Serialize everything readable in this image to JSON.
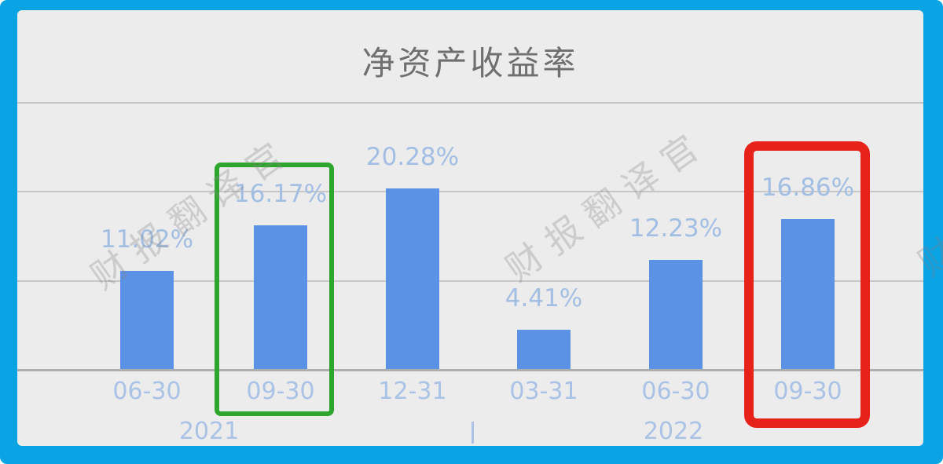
{
  "frame": {
    "border_color": "#0aa3e4",
    "background_color": "#ececec"
  },
  "chart_data": {
    "type": "bar",
    "title": "净资产收益率",
    "categories": [
      "06-30",
      "09-30",
      "12-31",
      "03-31",
      "06-30",
      "09-30"
    ],
    "values": [
      11.02,
      16.17,
      20.28,
      4.41,
      12.23,
      16.86
    ],
    "value_labels": [
      "11.02%",
      "16.17%",
      "20.28%",
      "4.41%",
      "12.23%",
      "16.86%"
    ],
    "year_groups": [
      {
        "label": "2021"
      },
      {
        "label": "2022"
      }
    ],
    "xlabel": "",
    "ylabel": "",
    "ylim": [
      0,
      35
    ],
    "gridline_values": [
      10,
      20,
      30
    ],
    "grid": true,
    "legend_position": "none",
    "bar_color": "#5b92e5",
    "value_label_color": "#a3bee3",
    "axis_label_color": "#a9c2e6",
    "title_color": "#6f6f6f",
    "gridline_color": "#c7c7c7",
    "highlights": [
      {
        "category_index": 1,
        "category": "09-30",
        "year": "2021",
        "box_color": "#2ea62e"
      },
      {
        "category_index": 5,
        "category": "09-30",
        "year": "2022",
        "box_color": "#e7221a"
      }
    ],
    "watermark_text": "财报翻译官"
  }
}
